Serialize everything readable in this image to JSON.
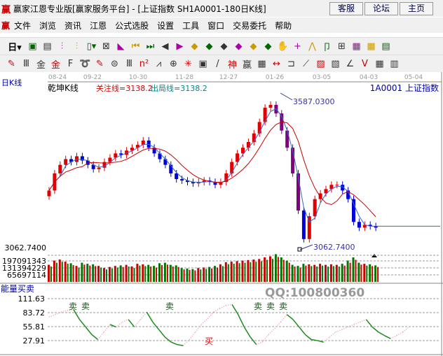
{
  "window": {
    "title": "赢家江恩专业版[赢家服务平台] - [上证指数  SH1A0001-180日K线]",
    "logo": "赢",
    "buttons": [
      "客服",
      "论坛",
      "主页"
    ]
  },
  "menu": {
    "logo": "赢",
    "items": [
      "文件",
      "浏览",
      "资讯",
      "江恩",
      "公式选股",
      "设置",
      "工具",
      "窗口",
      "交易委托",
      "帮助"
    ]
  },
  "toolbar1": {
    "period_label": "日",
    "icons": [
      "period-dropdown",
      "window-icon",
      "doc-icon",
      "chart3-icon",
      "chart9-icon",
      "candle-dropdown",
      "kline-icon",
      "flag-icon",
      "first-icon",
      "last-icon",
      "left-icon",
      "right-icon",
      "diamond-left-icon",
      "diamond-right-icon",
      "diamond-expand-icon",
      "diamond-shrink-icon",
      "diamond-up-icon",
      "diamond-updown-icon",
      "hand-icon",
      "crosshair-icon",
      "line-icon",
      "node-icon",
      "pattern-icon",
      "calendar-icon",
      "calculator-icon",
      "report-icon"
    ]
  },
  "toolbar2": {
    "icons": [
      "pen-icon",
      "grid-icon",
      "gold-icon",
      "gold2-icon",
      "f-icon",
      "spiral-icon",
      "pen2-icon",
      "circle-icon",
      "grid2-icon",
      "n2-icon",
      "angle-icon",
      "target-icon",
      "star-icon",
      "square-icon",
      "slash-icon",
      "shen-icon",
      "ying-icon",
      "ruler-icon",
      "measure-icon",
      "box-icon",
      "fan-icon",
      "box2-icon",
      "fan2-icon",
      "angle2-icon",
      "v-icon",
      "grid3-icon",
      "table-icon"
    ]
  },
  "chart": {
    "period": "日K线",
    "indicator_name": "乾坤K线",
    "focus_line": "关注线=3138.2",
    "exit_line": "出局线=3138.2",
    "code_label": "1A0001  上证指数",
    "date_ticks": [
      "08-24",
      "09-22",
      "10-30",
      "11-28",
      "12-27",
      "01-26",
      "03-05",
      "04-03",
      "05-04"
    ],
    "high_label": "3587.0300",
    "low_label": "3062.7400",
    "left_price_label": "3062.7400",
    "volume_ticks": [
      "197091343",
      "131394229",
      "65697114"
    ],
    "watermark": "QQ:100800360",
    "colors": {
      "up": "#e00000",
      "down": "#0000dd",
      "ma_red": "#cc0000",
      "ma_blue": "#3366cc",
      "vol_up": "#cc0000",
      "vol_down": "#007700"
    }
  },
  "energy": {
    "title": "能量买卖",
    "ticks": [
      "111.63",
      "83.72",
      "55.81",
      "27.91"
    ],
    "sell_label": "卖",
    "buy_label": "买"
  },
  "chart_data": {
    "type": "candlestick",
    "closes": [
      3270,
      3330,
      3360,
      3380,
      3370,
      3390,
      3375,
      3360,
      3345,
      3350,
      3370,
      3385,
      3400,
      3395,
      3410,
      3420,
      3430,
      3445,
      3420,
      3400,
      3380,
      3360,
      3330,
      3310,
      3305,
      3300,
      3295,
      3300,
      3305,
      3300,
      3290,
      3300,
      3330,
      3370,
      3400,
      3420,
      3440,
      3470,
      3510,
      3560,
      3570,
      3540,
      3480,
      3420,
      3330,
      3200,
      3100,
      3180,
      3240,
      3260,
      3275,
      3290,
      3290,
      3270,
      3240,
      3160,
      3140,
      3150,
      3145,
      3140
    ],
    "volumes_million": [
      160,
      200,
      210,
      190,
      175,
      150,
      180,
      170,
      165,
      150,
      130,
      140,
      150,
      155,
      160,
      145,
      170,
      165,
      160,
      150,
      175,
      180,
      160,
      155,
      130,
      125,
      120,
      130,
      135,
      140,
      150,
      165,
      185,
      190,
      195,
      200,
      205,
      210,
      215,
      230,
      240,
      260,
      230,
      200,
      160,
      150,
      170,
      165,
      160,
      170,
      160,
      165,
      160,
      170,
      200,
      230,
      180,
      170,
      165,
      155
    ],
    "energy": [
      75,
      80,
      85,
      88,
      90,
      70,
      55,
      40,
      30,
      45,
      60,
      55,
      65,
      70,
      55,
      70,
      85,
      65,
      50,
      35,
      25,
      20,
      18,
      30,
      45,
      60,
      72,
      85,
      92,
      98,
      100,
      80,
      55,
      35,
      20,
      25,
      40,
      52,
      65,
      80,
      70,
      55,
      40,
      30,
      28,
      25,
      35,
      45,
      50,
      55,
      60,
      65,
      70,
      55,
      45,
      38,
      32,
      38,
      45,
      55
    ],
    "signals": [
      {
        "index": 4,
        "label": "卖"
      },
      {
        "index": 5,
        "label": "卖"
      },
      {
        "index": 16,
        "label": "卖"
      },
      {
        "index": 21,
        "label": "买"
      },
      {
        "index": 29,
        "label": "卖"
      },
      {
        "index": 30,
        "label": "卖"
      },
      {
        "index": 31,
        "label": "卖"
      }
    ],
    "price_high": 3587.03,
    "price_low": 3062.74
  }
}
